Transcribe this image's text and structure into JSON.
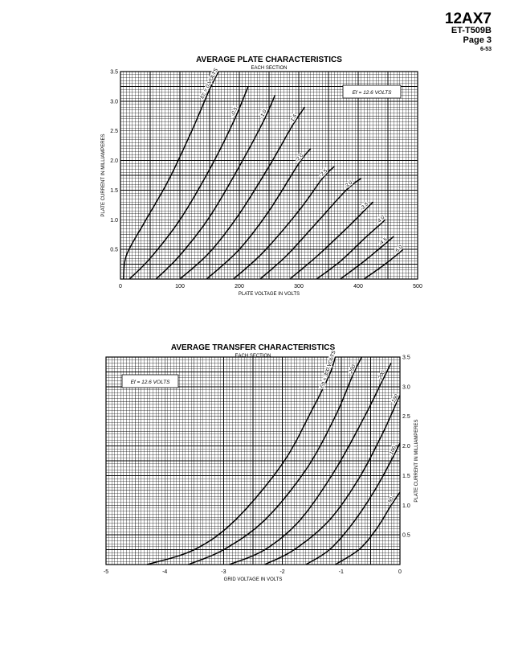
{
  "header": {
    "tube": "12AX7",
    "doc_number": "ET-T509B",
    "page": "Page 3",
    "date": "6-53"
  },
  "chart_data": [
    {
      "type": "line",
      "title": "AVERAGE PLATE CHARACTERISTICS",
      "subtitle": "EACH SECTION",
      "xlabel": "PLATE VOLTAGE IN VOLTS",
      "ylabel": "PLATE CURRENT IN MILLIAMPERES",
      "xlim": [
        0,
        500
      ],
      "ylim": [
        0,
        3.5
      ],
      "x_ticks": [
        "0",
        "100",
        "200",
        "300",
        "400",
        "500"
      ],
      "y_ticks": [
        "0.5",
        "1.0",
        "1.5",
        "2.0",
        "2.5",
        "3.0",
        "3.5"
      ],
      "annotation": "Ef = 12.6 VOLTS",
      "grid": true,
      "series": [
        {
          "name": "Ec = 0 VOLTS",
          "points": [
            [
              5,
              0
            ],
            [
              10,
              0.4
            ],
            [
              40,
              0.95
            ],
            [
              80,
              1.65
            ],
            [
              120,
              2.5
            ],
            [
              150,
              3.2
            ],
            [
              165,
              3.5
            ]
          ]
        },
        {
          "name": "-0.5",
          "points": [
            [
              15,
              0
            ],
            [
              50,
              0.35
            ],
            [
              100,
              1.0
            ],
            [
              150,
              1.85
            ],
            [
              190,
              2.65
            ],
            [
              215,
              3.25
            ]
          ]
        },
        {
          "name": "-1.0",
          "points": [
            [
              60,
              0
            ],
            [
              100,
              0.4
            ],
            [
              150,
              1.05
            ],
            [
              200,
              1.9
            ],
            [
              240,
              2.65
            ],
            [
              260,
              3.1
            ]
          ]
        },
        {
          "name": "-1.5",
          "points": [
            [
              100,
              0
            ],
            [
              150,
              0.45
            ],
            [
              200,
              1.1
            ],
            [
              250,
              1.9
            ],
            [
              290,
              2.6
            ],
            [
              310,
              2.9
            ]
          ]
        },
        {
          "name": "-2.0",
          "points": [
            [
              145,
              0
            ],
            [
              200,
              0.5
            ],
            [
              250,
              1.15
            ],
            [
              300,
              1.95
            ],
            [
              320,
              2.2
            ]
          ]
        },
        {
          "name": "-2.5",
          "points": [
            [
              190,
              0
            ],
            [
              240,
              0.45
            ],
            [
              300,
              1.15
            ],
            [
              340,
              1.7
            ],
            [
              360,
              1.9
            ]
          ]
        },
        {
          "name": "-3.0",
          "points": [
            [
              235,
              0
            ],
            [
              280,
              0.4
            ],
            [
              330,
              0.95
            ],
            [
              380,
              1.5
            ],
            [
              405,
              1.7
            ]
          ]
        },
        {
          "name": "-3.5",
          "points": [
            [
              285,
              0
            ],
            [
              330,
              0.38
            ],
            [
              380,
              0.85
            ],
            [
              410,
              1.15
            ],
            [
              425,
              1.3
            ]
          ]
        },
        {
          "name": "-4.0",
          "points": [
            [
              330,
              0
            ],
            [
              370,
              0.3
            ],
            [
              410,
              0.68
            ],
            [
              440,
              0.95
            ],
            [
              445,
              1.0
            ]
          ]
        },
        {
          "name": "-4.5",
          "points": [
            [
              370,
              0
            ],
            [
              410,
              0.3
            ],
            [
              440,
              0.55
            ],
            [
              460,
              0.72
            ]
          ]
        },
        {
          "name": "-5.0",
          "points": [
            [
              410,
              0
            ],
            [
              445,
              0.25
            ],
            [
              470,
              0.45
            ],
            [
              475,
              0.5
            ]
          ]
        }
      ]
    },
    {
      "type": "line",
      "title": "AVERAGE TRANSFER CHARACTERISTICS",
      "subtitle": "EACH SECTION",
      "xlabel": "GRID VOLTAGE IN VOLTS",
      "ylabel": "PLATE CURRENT IN MILLIAMPERES",
      "xlim": [
        -5,
        0
      ],
      "ylim": [
        0,
        3.5
      ],
      "x_ticks": [
        "-5",
        "-4",
        "-3",
        "-2",
        "-1",
        "0"
      ],
      "y_ticks": [
        "0.5",
        "1.0",
        "1.5",
        "2.0",
        "2.5",
        "3.0",
        "3.5"
      ],
      "annotation": "Ef = 12.6 VOLTS",
      "grid": true,
      "series": [
        {
          "name": "Eb = 300 VOLTS",
          "points": [
            [
              -4.3,
              0
            ],
            [
              -3.5,
              0.25
            ],
            [
              -2.8,
              0.75
            ],
            [
              -2.0,
              1.7
            ],
            [
              -1.5,
              2.6
            ],
            [
              -1.2,
              3.2
            ],
            [
              -1.1,
              3.5
            ]
          ]
        },
        {
          "name": "250",
          "points": [
            [
              -3.6,
              0
            ],
            [
              -3.0,
              0.25
            ],
            [
              -2.3,
              0.75
            ],
            [
              -1.6,
              1.6
            ],
            [
              -1.1,
              2.5
            ],
            [
              -0.8,
              3.2
            ],
            [
              -0.65,
              3.5
            ]
          ]
        },
        {
          "name": "200",
          "points": [
            [
              -2.9,
              0
            ],
            [
              -2.3,
              0.25
            ],
            [
              -1.7,
              0.75
            ],
            [
              -1.1,
              1.6
            ],
            [
              -0.6,
              2.5
            ],
            [
              -0.3,
              3.1
            ],
            [
              -0.15,
              3.4
            ]
          ]
        },
        {
          "name": "150",
          "points": [
            [
              -2.3,
              0
            ],
            [
              -1.8,
              0.25
            ],
            [
              -1.2,
              0.75
            ],
            [
              -0.7,
              1.45
            ],
            [
              -0.3,
              2.2
            ],
            [
              -0.05,
              2.75
            ],
            [
              0,
              2.85
            ]
          ]
        },
        {
          "name": "100",
          "points": [
            [
              -1.6,
              0
            ],
            [
              -1.2,
              0.25
            ],
            [
              -0.8,
              0.7
            ],
            [
              -0.4,
              1.3
            ],
            [
              -0.1,
              1.85
            ],
            [
              0,
              2.05
            ]
          ]
        },
        {
          "name": "50",
          "points": [
            [
              -1.1,
              0
            ],
            [
              -0.7,
              0.25
            ],
            [
              -0.4,
              0.6
            ],
            [
              -0.15,
              1.0
            ],
            [
              0,
              1.22
            ]
          ]
        }
      ]
    }
  ]
}
